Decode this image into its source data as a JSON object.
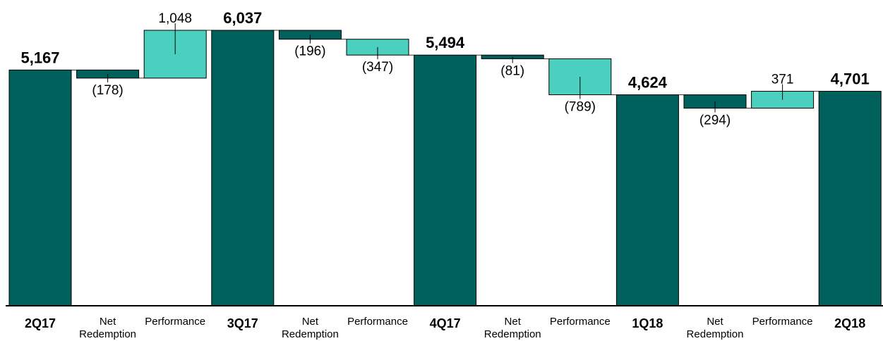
{
  "chart_data": {
    "type": "bar",
    "subtype": "waterfall",
    "title": "",
    "xlabel": "",
    "ylabel": "",
    "ylim": [
      0,
      6037
    ],
    "grid": false,
    "legend": "none",
    "colors": {
      "total": "#00615c",
      "net_redemption": "#00615c",
      "performance": "#4bd0c0"
    },
    "categories": [
      "2Q17",
      "Net\nRedemption",
      "Performance",
      "3Q17",
      "Net\nRedemption",
      "Performance",
      "4Q17",
      "Net\nRedemption",
      "Performance",
      "1Q18",
      "Net\nRedemption",
      "Performance",
      "2Q18"
    ],
    "items": [
      {
        "category": "2Q17",
        "kind": "total",
        "value": 5167,
        "label": "5,167"
      },
      {
        "category": "Net Redemption",
        "kind": "net_redemption",
        "value": -178,
        "label": "(178)"
      },
      {
        "category": "Performance",
        "kind": "performance",
        "value": 1048,
        "label": "1,048"
      },
      {
        "category": "3Q17",
        "kind": "total",
        "value": 6037,
        "label": "6,037"
      },
      {
        "category": "Net Redemption",
        "kind": "net_redemption",
        "value": -196,
        "label": "(196)"
      },
      {
        "category": "Performance",
        "kind": "performance",
        "value": -347,
        "label": "(347)"
      },
      {
        "category": "4Q17",
        "kind": "total",
        "value": 5494,
        "label": "5,494"
      },
      {
        "category": "Net Redemption",
        "kind": "net_redemption",
        "value": -81,
        "label": "(81)"
      },
      {
        "category": "Performance",
        "kind": "performance",
        "value": -789,
        "label": "(789)"
      },
      {
        "category": "1Q18",
        "kind": "total",
        "value": 4624,
        "label": "4,624"
      },
      {
        "category": "Net Redemption",
        "kind": "net_redemption",
        "value": -294,
        "label": "(294)"
      },
      {
        "category": "Performance",
        "kind": "performance",
        "value": 371,
        "label": "371"
      },
      {
        "category": "2Q18",
        "kind": "total",
        "value": 4701,
        "label": "4,701"
      }
    ]
  }
}
